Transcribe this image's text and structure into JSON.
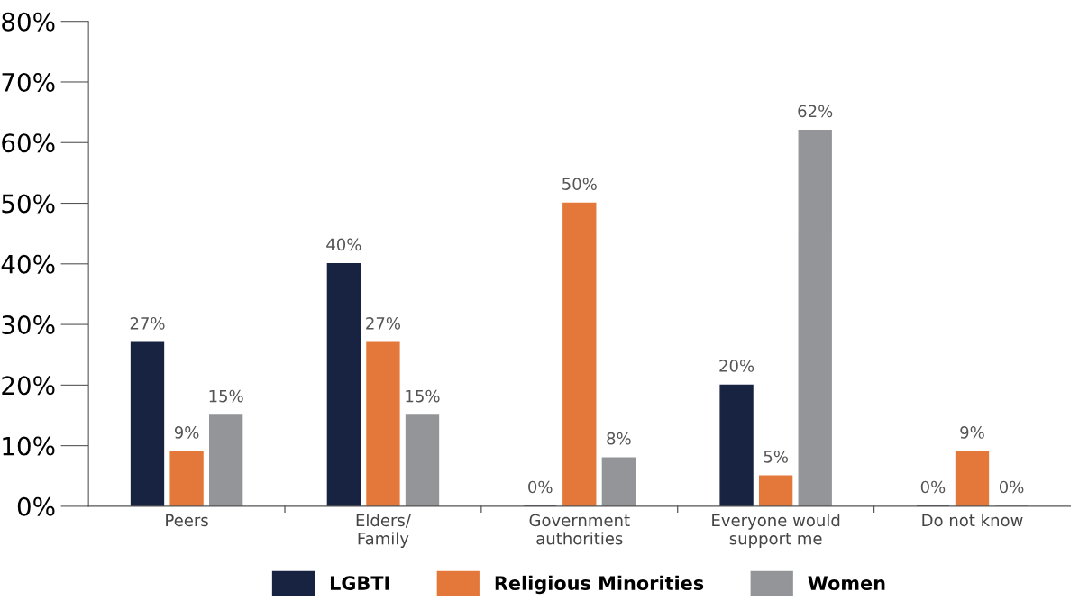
{
  "chart_data": {
    "type": "bar",
    "categories": [
      "Peers",
      "Elders/\nFamily",
      "Government\nauthorities",
      "Everyone would\nsupport me",
      "Do not know"
    ],
    "series": [
      {
        "name": "LGBTI",
        "color": "#172340",
        "values": [
          27,
          40,
          0,
          20,
          0
        ],
        "value_labels": [
          "27%",
          "40%",
          "0%",
          "20%",
          "0%"
        ]
      },
      {
        "name": "Religious Minorities",
        "color": "#e3783a",
        "values": [
          9,
          27,
          50,
          5,
          9
        ],
        "value_labels": [
          "9%",
          "27%",
          "50%",
          "5%",
          "9%"
        ]
      },
      {
        "name": "Women",
        "color": "#939598",
        "values": [
          15,
          15,
          8,
          62,
          0
        ],
        "value_labels": [
          "15%",
          "15%",
          "8%",
          "62%",
          "0%"
        ]
      }
    ],
    "ylim": [
      0,
      80
    ],
    "yticks": [
      {
        "value": 0,
        "label": "0%"
      },
      {
        "value": 10,
        "label": "10%"
      },
      {
        "value": 20,
        "label": "20%"
      },
      {
        "value": 30,
        "label": "30%"
      },
      {
        "value": 40,
        "label": "40%"
      },
      {
        "value": 50,
        "label": "50%"
      },
      {
        "value": 60,
        "label": "60%"
      },
      {
        "value": 70,
        "label": "70%"
      },
      {
        "value": 80,
        "label": "80%"
      }
    ],
    "legend": "bottom",
    "grid": false
  }
}
